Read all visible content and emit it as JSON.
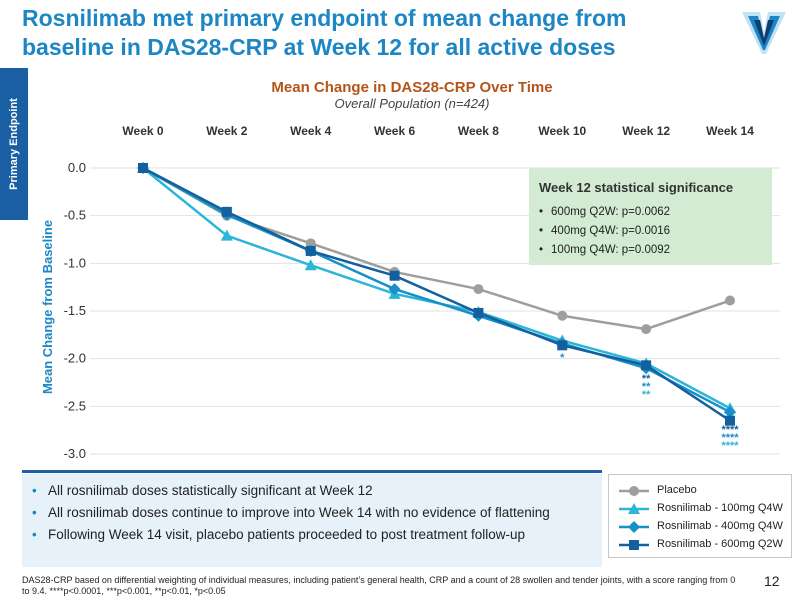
{
  "slide": {
    "title": "Rosnilimab met primary endpoint of mean change from baseline in DAS28-CRP at Week 12 for all active doses",
    "side_tab": "Primary Endpoint",
    "page_number": "12",
    "footnote": "DAS28-CRP based on differential weighting of individual measures, including patient’s general health, CRP and a count of 28 swollen and tender joints, with a score ranging from 0 to 9.4.  ****p<0.0001, ***p<0.001, **p<0.01, *p<0.05"
  },
  "significance_box": {
    "title": "Week 12 statistical significance",
    "items": [
      "600mg Q2W: p=0.0062",
      "400mg Q4W: p=0.0016",
      "100mg Q4W: p=0.0092"
    ]
  },
  "bullets": [
    "All rosnilimab doses statistically significant at Week 12",
    "All rosnilimab doses continue to improve into Week 14 with no evidence of flattening",
    "Following Week 14 visit, placebo patients proceeded to post treatment follow-up"
  ],
  "colors": {
    "title": "#1d86c4",
    "subtitle": "#b5541a",
    "placebo": "#9e9e9e",
    "dose100": "#2bb5d8",
    "dose400": "#1790c8",
    "dose600": "#12609e",
    "sig_box": "#d3ebd3",
    "brand_dark": "#1a5fa3"
  },
  "chart_data": {
    "type": "line",
    "title": "Mean Change in DAS28-CRP Over Time",
    "subtitle": "Overall Population (n=424)",
    "categories": [
      "Week 0",
      "Week 2",
      "Week 4",
      "Week 6",
      "Week 8",
      "Week 10",
      "Week 12",
      "Week 14"
    ],
    "ylabel": "Mean Change from Baseline",
    "ylim": [
      -3.0,
      0.0
    ],
    "yticks": [
      0.0,
      -0.5,
      -1.0,
      -1.5,
      -2.0,
      -2.5,
      -3.0
    ],
    "ytick_labels": [
      "0.0",
      "-0.5",
      "-1.0",
      "-1.5",
      "-2.0",
      "-2.5",
      "-3.0"
    ],
    "series": [
      {
        "name": "Placebo",
        "marker": "circle",
        "color": "#9e9e9e",
        "values": [
          0.0,
          -0.5,
          -0.79,
          -1.09,
          -1.27,
          -1.55,
          -1.69,
          -1.39
        ]
      },
      {
        "name": "Rosnilimab - 100mg Q4W",
        "marker": "triangle",
        "color": "#2bb5d8",
        "values": [
          0.0,
          -0.71,
          -1.02,
          -1.32,
          -1.51,
          -1.81,
          -2.05,
          -2.52
        ]
      },
      {
        "name": "Rosnilimab - 400mg Q4W",
        "marker": "diamond",
        "color": "#1790c8",
        "values": [
          0.0,
          -0.49,
          -0.87,
          -1.27,
          -1.55,
          -1.84,
          -2.1,
          -2.56
        ]
      },
      {
        "name": "Rosnilimab - 600mg Q2W",
        "marker": "square",
        "color": "#12609e",
        "values": [
          0.0,
          -0.46,
          -0.87,
          -1.13,
          -1.52,
          -1.86,
          -2.07,
          -2.65
        ]
      }
    ],
    "significance_marks": [
      {
        "category": "Week 10",
        "labels": [
          "*",
          "*"
        ]
      },
      {
        "category": "Week 12",
        "labels": [
          "**",
          "**",
          "**"
        ]
      },
      {
        "category": "Week 14",
        "labels": [
          "****",
          "****",
          "****"
        ]
      }
    ],
    "grid": true,
    "legend_position": "bottom-right"
  }
}
